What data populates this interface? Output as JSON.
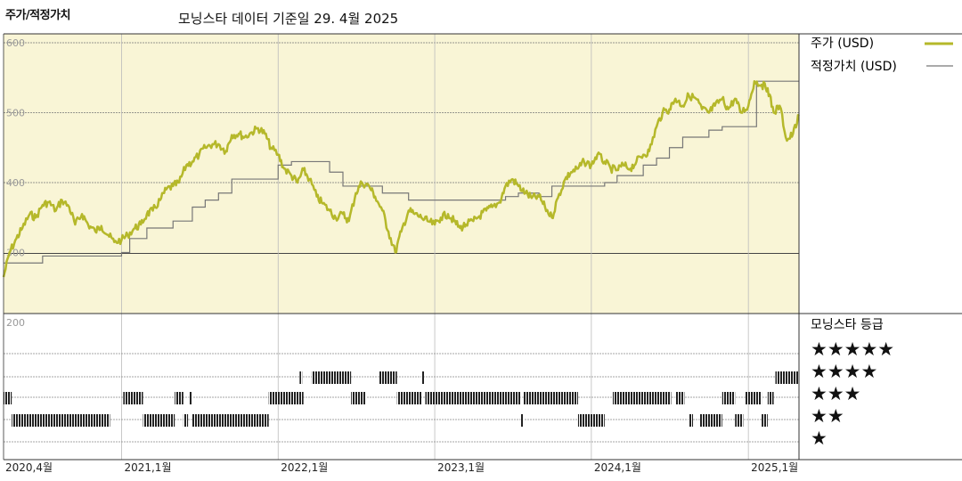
{
  "header": {
    "title": "주가/적정가치",
    "subtitle": "모닝스타 데이터 기준일 29. 4월 2025"
  },
  "colors": {
    "price": "#b5b82a",
    "fair_value": "#777777",
    "panel_bg": "#f9f5d6",
    "star": "#111111",
    "rating_bar": "#222222"
  },
  "legend": {
    "price_label": "주가 (USD)",
    "fair_value_label": "적정가치 (USD)",
    "rating_title": "모닝스타 등급"
  },
  "chart_data": {
    "type": "line",
    "ylim": [
      200,
      600
    ],
    "yticks": [
      200,
      300,
      400,
      500,
      600
    ],
    "xticks": [
      "2020,4월",
      "2021,1월",
      "2022,1월",
      "2023,1월",
      "2024,1월",
      "2025,1월"
    ],
    "xtick_dates": [
      "2020-04-01",
      "2021-01-01",
      "2022-01-01",
      "2023-01-01",
      "2024-01-01",
      "2025-01-01"
    ],
    "x_range": [
      "2020-04-01",
      "2025-04-29"
    ],
    "series": [
      {
        "name": "주가 (USD)",
        "points": [
          [
            "2020-04-01",
            265
          ],
          [
            "2020-04-15",
            300
          ],
          [
            "2020-05-01",
            320
          ],
          [
            "2020-05-15",
            335
          ],
          [
            "2020-06-01",
            355
          ],
          [
            "2020-06-15",
            350
          ],
          [
            "2020-07-01",
            368
          ],
          [
            "2020-07-15",
            372
          ],
          [
            "2020-08-01",
            360
          ],
          [
            "2020-08-15",
            375
          ],
          [
            "2020-09-01",
            365
          ],
          [
            "2020-09-15",
            340
          ],
          [
            "2020-10-01",
            355
          ],
          [
            "2020-10-15",
            340
          ],
          [
            "2020-11-01",
            330
          ],
          [
            "2020-11-15",
            338
          ],
          [
            "2020-12-01",
            325
          ],
          [
            "2020-12-15",
            315
          ],
          [
            "2021-01-01",
            318
          ],
          [
            "2021-01-15",
            325
          ],
          [
            "2021-02-01",
            335
          ],
          [
            "2021-02-15",
            340
          ],
          [
            "2021-03-01",
            355
          ],
          [
            "2021-03-15",
            360
          ],
          [
            "2021-04-01",
            375
          ],
          [
            "2021-04-15",
            390
          ],
          [
            "2021-05-01",
            395
          ],
          [
            "2021-05-15",
            400
          ],
          [
            "2021-06-01",
            425
          ],
          [
            "2021-06-15",
            430
          ],
          [
            "2021-07-01",
            440
          ],
          [
            "2021-07-15",
            450
          ],
          [
            "2021-08-01",
            455
          ],
          [
            "2021-08-15",
            455
          ],
          [
            "2021-09-01",
            445
          ],
          [
            "2021-09-15",
            468
          ],
          [
            "2021-10-01",
            470
          ],
          [
            "2021-10-15",
            465
          ],
          [
            "2021-11-01",
            472
          ],
          [
            "2021-11-15",
            478
          ],
          [
            "2021-12-01",
            470
          ],
          [
            "2021-12-15",
            450
          ],
          [
            "2022-01-01",
            440
          ],
          [
            "2022-01-15",
            420
          ],
          [
            "2022-02-01",
            410
          ],
          [
            "2022-02-15",
            400
          ],
          [
            "2022-03-01",
            418
          ],
          [
            "2022-03-15",
            405
          ],
          [
            "2022-04-01",
            380
          ],
          [
            "2022-04-15",
            370
          ],
          [
            "2022-05-01",
            360
          ],
          [
            "2022-05-15",
            350
          ],
          [
            "2022-06-01",
            355
          ],
          [
            "2022-06-15",
            345
          ],
          [
            "2022-07-01",
            385
          ],
          [
            "2022-07-15",
            400
          ],
          [
            "2022-08-01",
            395
          ],
          [
            "2022-08-15",
            380
          ],
          [
            "2022-09-01",
            360
          ],
          [
            "2022-09-15",
            330
          ],
          [
            "2022-10-01",
            300
          ],
          [
            "2022-10-15",
            330
          ],
          [
            "2022-11-01",
            360
          ],
          [
            "2022-11-15",
            355
          ],
          [
            "2022-12-01",
            350
          ],
          [
            "2022-12-15",
            345
          ],
          [
            "2023-01-01",
            340
          ],
          [
            "2023-01-15",
            350
          ],
          [
            "2023-02-01",
            355
          ],
          [
            "2023-02-15",
            345
          ],
          [
            "2023-03-01",
            335
          ],
          [
            "2023-03-15",
            340
          ],
          [
            "2023-04-01",
            345
          ],
          [
            "2023-04-15",
            352
          ],
          [
            "2023-05-01",
            360
          ],
          [
            "2023-05-15",
            365
          ],
          [
            "2023-06-01",
            372
          ],
          [
            "2023-06-15",
            395
          ],
          [
            "2023-07-01",
            405
          ],
          [
            "2023-07-15",
            395
          ],
          [
            "2023-08-01",
            385
          ],
          [
            "2023-08-15",
            378
          ],
          [
            "2023-09-01",
            380
          ],
          [
            "2023-09-15",
            365
          ],
          [
            "2023-10-01",
            350
          ],
          [
            "2023-10-15",
            378
          ],
          [
            "2023-11-01",
            405
          ],
          [
            "2023-11-15",
            415
          ],
          [
            "2023-12-01",
            420
          ],
          [
            "2023-12-15",
            430
          ],
          [
            "2024-01-01",
            425
          ],
          [
            "2024-01-15",
            440
          ],
          [
            "2024-02-01",
            430
          ],
          [
            "2024-02-15",
            420
          ],
          [
            "2024-03-01",
            418
          ],
          [
            "2024-03-15",
            425
          ],
          [
            "2024-04-01",
            420
          ],
          [
            "2024-04-15",
            430
          ],
          [
            "2024-05-01",
            440
          ],
          [
            "2024-05-15",
            445
          ],
          [
            "2024-06-01",
            480
          ],
          [
            "2024-06-15",
            500
          ],
          [
            "2024-07-01",
            505
          ],
          [
            "2024-07-15",
            520
          ],
          [
            "2024-08-01",
            510
          ],
          [
            "2024-08-15",
            525
          ],
          [
            "2024-09-01",
            520
          ],
          [
            "2024-09-15",
            505
          ],
          [
            "2024-10-01",
            500
          ],
          [
            "2024-10-15",
            510
          ],
          [
            "2024-11-01",
            520
          ],
          [
            "2024-11-15",
            505
          ],
          [
            "2024-12-01",
            520
          ],
          [
            "2024-12-15",
            500
          ],
          [
            "2025-01-01",
            510
          ],
          [
            "2025-01-15",
            545
          ],
          [
            "2025-02-01",
            540
          ],
          [
            "2025-02-15",
            535
          ],
          [
            "2025-03-01",
            500
          ],
          [
            "2025-03-15",
            510
          ],
          [
            "2025-04-01",
            460
          ],
          [
            "2025-04-15",
            470
          ],
          [
            "2025-04-29",
            495
          ]
        ]
      },
      {
        "name": "적정가치 (USD)",
        "step_points": [
          [
            "2020-04-01",
            285
          ],
          [
            "2020-07-01",
            295
          ],
          [
            "2021-01-01",
            300
          ],
          [
            "2021-01-20",
            320
          ],
          [
            "2021-03-01",
            335
          ],
          [
            "2021-05-01",
            345
          ],
          [
            "2021-06-15",
            365
          ],
          [
            "2021-07-15",
            375
          ],
          [
            "2021-08-15",
            385
          ],
          [
            "2021-09-15",
            405
          ],
          [
            "2022-01-01",
            425
          ],
          [
            "2022-02-01",
            430
          ],
          [
            "2022-05-01",
            415
          ],
          [
            "2022-06-01",
            395
          ],
          [
            "2022-09-01",
            385
          ],
          [
            "2022-11-01",
            375
          ],
          [
            "2023-06-15",
            380
          ],
          [
            "2023-07-15",
            385
          ],
          [
            "2023-09-01",
            380
          ],
          [
            "2023-10-01",
            395
          ],
          [
            "2024-02-01",
            400
          ],
          [
            "2024-03-01",
            410
          ],
          [
            "2024-05-01",
            425
          ],
          [
            "2024-06-01",
            435
          ],
          [
            "2024-07-01",
            450
          ],
          [
            "2024-08-01",
            465
          ],
          [
            "2024-10-01",
            475
          ],
          [
            "2024-11-01",
            480
          ],
          [
            "2025-01-01",
            480
          ],
          [
            "2025-01-20",
            545
          ],
          [
            "2025-04-29",
            545
          ]
        ]
      }
    ],
    "ratings": {
      "labels": [
        "★★★★★",
        "★★★★",
        "★★★",
        "★★",
        "★"
      ],
      "periods": [
        {
          "stars": 3,
          "from": "2020-04-01",
          "to": "2020-04-20"
        },
        {
          "stars": 2,
          "from": "2020-04-20",
          "to": "2020-12-05"
        },
        {
          "stars": 3,
          "from": "2021-01-05",
          "to": "2021-02-20"
        },
        {
          "stars": 2,
          "from": "2021-02-20",
          "to": "2021-05-05"
        },
        {
          "stars": 3,
          "from": "2021-05-05",
          "to": "2021-05-25"
        },
        {
          "stars": 2,
          "from": "2021-05-25",
          "to": "2021-06-05"
        },
        {
          "stars": 3,
          "from": "2021-06-08",
          "to": "2021-06-15"
        },
        {
          "stars": 2,
          "from": "2021-06-15",
          "to": "2021-12-10"
        },
        {
          "stars": 3,
          "from": "2021-12-10",
          "to": "2022-03-01"
        },
        {
          "stars": 4,
          "from": "2022-02-20",
          "to": "2022-02-26"
        },
        {
          "stars": 4,
          "from": "2022-03-20",
          "to": "2022-06-20"
        },
        {
          "stars": 3,
          "from": "2022-06-20",
          "to": "2022-07-25"
        },
        {
          "stars": 4,
          "from": "2022-08-25",
          "to": "2022-10-05"
        },
        {
          "stars": 3,
          "from": "2022-10-05",
          "to": "2022-12-01"
        },
        {
          "stars": 4,
          "from": "2022-12-01",
          "to": "2022-12-07"
        },
        {
          "stars": 3,
          "from": "2022-12-10",
          "to": "2023-07-20"
        },
        {
          "stars": 2,
          "from": "2023-07-20",
          "to": "2023-07-27"
        },
        {
          "stars": 3,
          "from": "2023-07-27",
          "to": "2023-12-01"
        },
        {
          "stars": 2,
          "from": "2023-12-01",
          "to": "2024-02-01"
        },
        {
          "stars": 3,
          "from": "2024-02-20",
          "to": "2024-07-05"
        },
        {
          "stars": 3,
          "from": "2024-07-15",
          "to": "2024-08-05"
        },
        {
          "stars": 2,
          "from": "2024-08-15",
          "to": "2024-08-25"
        },
        {
          "stars": 2,
          "from": "2024-09-10",
          "to": "2024-11-01"
        },
        {
          "stars": 3,
          "from": "2024-11-01",
          "to": "2024-12-01"
        },
        {
          "stars": 2,
          "from": "2024-12-01",
          "to": "2024-12-20"
        },
        {
          "stars": 3,
          "from": "2024-12-25",
          "to": "2025-02-01"
        },
        {
          "stars": 2,
          "from": "2025-02-01",
          "to": "2025-02-15"
        },
        {
          "stars": 3,
          "from": "2025-02-15",
          "to": "2025-03-01"
        },
        {
          "stars": 4,
          "from": "2025-03-05",
          "to": "2025-04-29"
        }
      ]
    }
  }
}
